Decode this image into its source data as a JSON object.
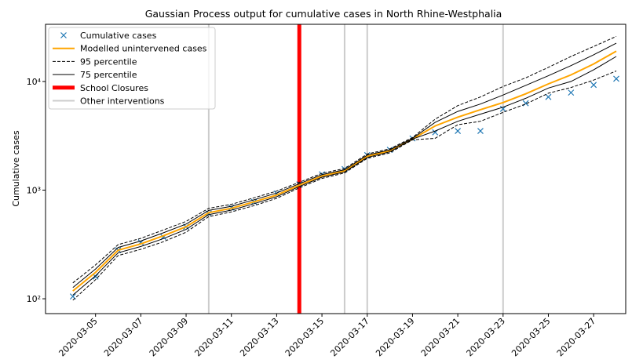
{
  "chart_data": {
    "type": "line",
    "title": "Gaussian Process output for cumulative cases in North Rhine-Westphalia",
    "y_label": "Cumulative cases",
    "x": [
      "2020-03-04",
      "2020-03-05",
      "2020-03-06",
      "2020-03-07",
      "2020-03-08",
      "2020-03-09",
      "2020-03-10",
      "2020-03-11",
      "2020-03-12",
      "2020-03-13",
      "2020-03-14",
      "2020-03-15",
      "2020-03-16",
      "2020-03-17",
      "2020-03-18",
      "2020-03-19",
      "2020-03-20",
      "2020-03-21",
      "2020-03-22",
      "2020-03-23",
      "2020-03-24",
      "2020-03-25",
      "2020-03-26",
      "2020-03-27",
      "2020-03-28"
    ],
    "xlim": [
      "2020-03-02T19:00",
      "2020-03-28T10:00"
    ],
    "xticks": [
      "2020-03-05",
      "2020-03-07",
      "2020-03-09",
      "2020-03-11",
      "2020-03-13",
      "2020-03-15",
      "2020-03-17",
      "2020-03-19",
      "2020-03-21",
      "2020-03-23",
      "2020-03-25",
      "2020-03-27"
    ],
    "ylim": [
      73,
      33600
    ],
    "y_scale": "log",
    "yticks": [
      {
        "value": 100,
        "label": "10²"
      },
      {
        "value": 1000,
        "label": "10³"
      },
      {
        "value": 10000,
        "label": "10⁴"
      }
    ],
    "legend_position": "upper left",
    "series": [
      {
        "name": "Cumulative cases",
        "color": "#1f77b4",
        "marker": "x",
        "values": [
          105,
          160,
          280,
          330,
          370,
          460,
          610,
          690,
          780,
          930,
          1130,
          1400,
          1560,
          2100,
          2350,
          2990,
          3400,
          3500,
          3500,
          5600,
          6300,
          7200,
          7900,
          9300,
          10600
        ]
      },
      {
        "name": "Modelled unintervened cases",
        "color": "#ffa500",
        "width": 2,
        "values": [
          118,
          175,
          280,
          320,
          380,
          460,
          620,
          680,
          780,
          900,
          1110,
          1350,
          1500,
          2050,
          2300,
          2950,
          3900,
          4700,
          5500,
          6400,
          7700,
          9500,
          11500,
          14500,
          19000
        ]
      },
      {
        "name": "95 percentile",
        "color": "#000000",
        "dash": true,
        "width": 1,
        "lower": [
          97,
          150,
          250,
          285,
          335,
          410,
          570,
          630,
          720,
          840,
          1050,
          1280,
          1440,
          1960,
          2200,
          2900,
          3000,
          4000,
          4300,
          5200,
          6200,
          7800,
          8800,
          10300,
          12500
        ],
        "upper": [
          140,
          205,
          315,
          360,
          430,
          515,
          680,
          740,
          850,
          980,
          1180,
          1430,
          1580,
          2150,
          2400,
          3050,
          4500,
          6000,
          7200,
          9000,
          10800,
          13500,
          17000,
          21000,
          26000
        ]
      },
      {
        "name": "75 percentile",
        "color": "#000000",
        "width": 1,
        "lower": [
          108,
          163,
          265,
          303,
          358,
          435,
          595,
          655,
          750,
          870,
          1080,
          1315,
          1470,
          2000,
          2250,
          2950,
          3500,
          4300,
          5000,
          5800,
          7000,
          8700,
          10000,
          12800,
          17000
        ],
        "upper": [
          127,
          188,
          297,
          340,
          405,
          487,
          650,
          710,
          815,
          940,
          1145,
          1390,
          1540,
          2100,
          2350,
          3000,
          4200,
          5300,
          6200,
          7500,
          9200,
          11300,
          14000,
          17600,
          22500
        ]
      }
    ],
    "interventions": [
      {
        "name": "School Closures",
        "color": "#ff0000",
        "width": 5,
        "dates": [
          "2020-03-14"
        ]
      },
      {
        "name": "Other interventions",
        "color": "#cccccc",
        "width": 2,
        "dates": [
          "2020-03-10",
          "2020-03-16",
          "2020-03-17",
          "2020-03-23"
        ]
      }
    ]
  }
}
